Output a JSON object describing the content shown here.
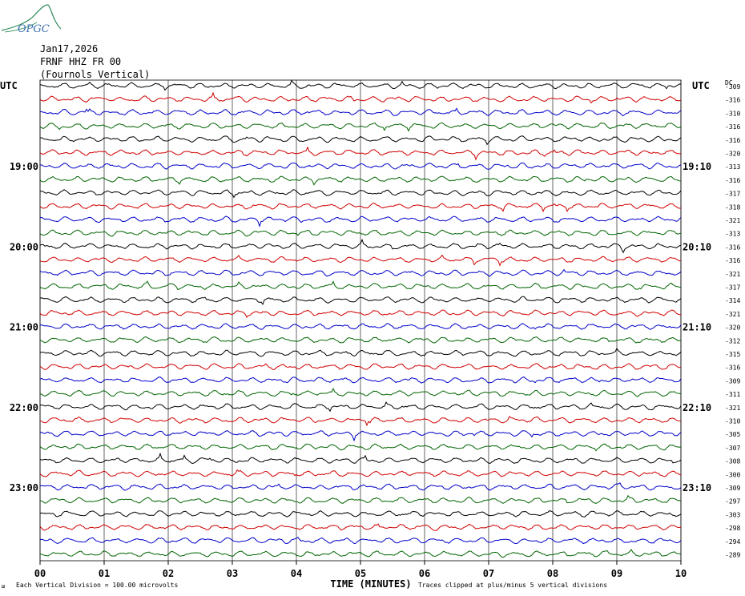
{
  "logo_text": "OPGC",
  "header": {
    "date": "Jan17,2026",
    "station": "FRNF HHZ FR 00",
    "location": "(Fournols Vertical)"
  },
  "left_axis_label": "UTC",
  "right_axis_label": "UTC",
  "dc_label": "DC",
  "footer": {
    "left_mark": "ш",
    "scale_note": "Each Vertical Division =  100.00 microvolts",
    "xlabel": "TIME (MINUTES)",
    "clip_note": "Traces clipped at plus/minus 5 vertical divisions"
  },
  "colors": {
    "cycle": [
      "#000000",
      "#d00000",
      "#0000c8",
      "#006400"
    ],
    "grid": "#000000"
  },
  "chart_data": {
    "type": "line",
    "xlabel": "TIME (MINUTES)",
    "xlim": [
      0,
      10
    ],
    "x_ticks": [
      "00",
      "01",
      "02",
      "03",
      "04",
      "05",
      "06",
      "07",
      "08",
      "09",
      "10"
    ],
    "left_time_labels": [
      {
        "row": 6,
        "label": "19:00"
      },
      {
        "row": 12,
        "label": "20:00"
      },
      {
        "row": 18,
        "label": "21:00"
      },
      {
        "row": 24,
        "label": "22:00"
      },
      {
        "row": 30,
        "label": "23:00"
      }
    ],
    "right_time_labels": [
      {
        "row": 6,
        "label": "19:10"
      },
      {
        "row": 12,
        "label": "20:10"
      },
      {
        "row": 18,
        "label": "21:10"
      },
      {
        "row": 24,
        "label": "22:10"
      },
      {
        "row": 30,
        "label": "23:10"
      }
    ],
    "dc_offsets": [
      "-309",
      "-316",
      "-310",
      "-316",
      "-316",
      "-320",
      "-313",
      "-316",
      "-317",
      "-318",
      "-321",
      "-313",
      "-316",
      "-316",
      "-321",
      "-317",
      "-314",
      "-321",
      "-320",
      "-312",
      "-315",
      "-316",
      "-309",
      "-311",
      "-321",
      "-310",
      "-305",
      "-307",
      "-308",
      "-300",
      "-309",
      "-297",
      "-303",
      "-298",
      "-294",
      "-289"
    ],
    "rows": 36,
    "grid": true
  }
}
